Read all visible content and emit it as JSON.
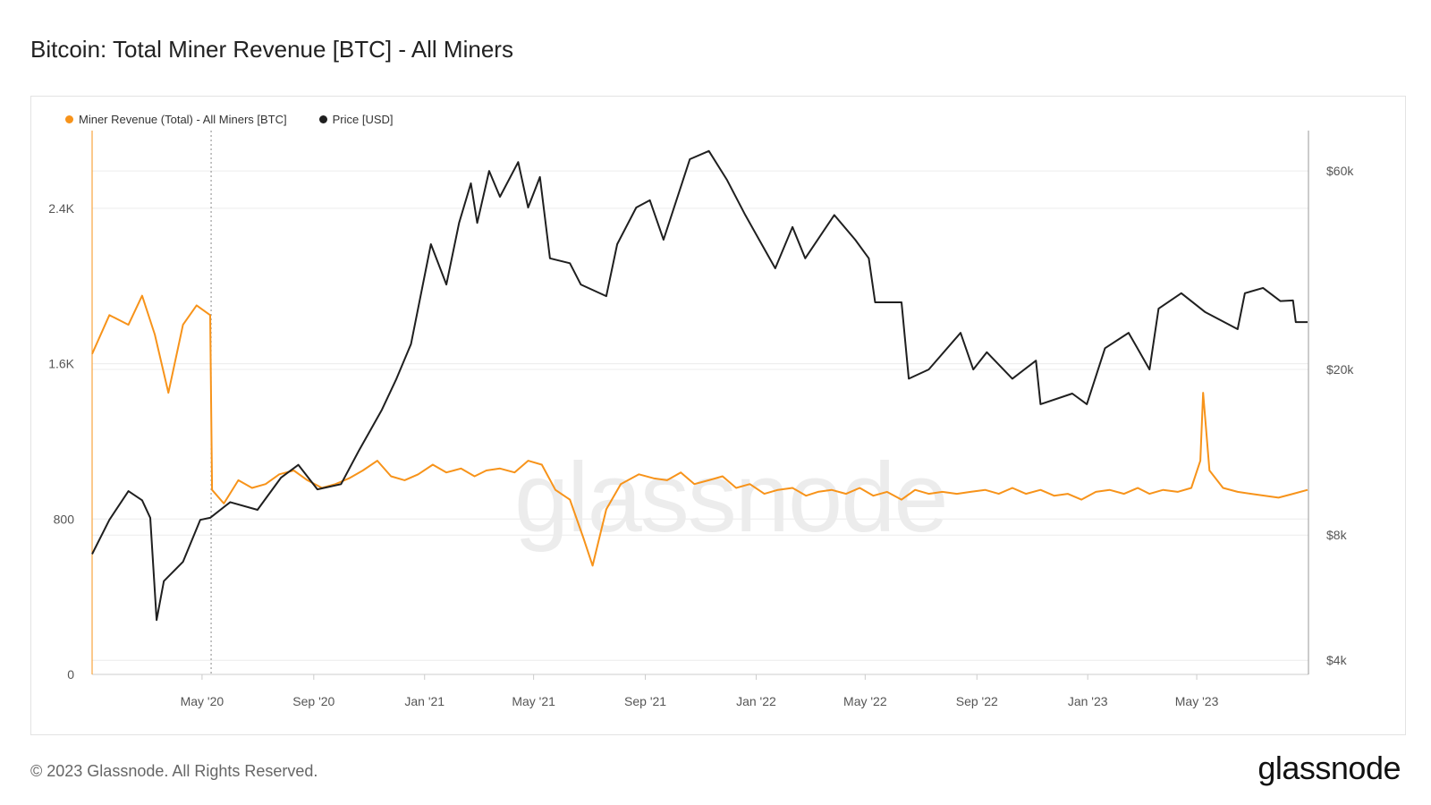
{
  "title": "Bitcoin: Total Miner Revenue [BTC] - All Miners",
  "footer": {
    "copyright": "© 2023 Glassnode. All Rights Reserved.",
    "logo": "glassnode"
  },
  "watermark": "glassnode",
  "colors": {
    "revenue": "#f7931a",
    "price": "#1f1f1f",
    "grid": "#ececec",
    "axis": "#cccccc"
  },
  "chart_data": {
    "type": "line",
    "title": "Bitcoin: Total Miner Revenue [BTC] - All Miners",
    "legend_position": "top-left",
    "grid": true,
    "x_ticks": [
      "May '20",
      "Sep '20",
      "Jan '21",
      "May '21",
      "Sep '21",
      "Jan '22",
      "May '22",
      "Sep '22",
      "Jan '23",
      "May '23"
    ],
    "x_tick_dates": [
      "2020-05-01",
      "2020-09-01",
      "2021-01-01",
      "2021-05-01",
      "2021-09-01",
      "2022-01-01",
      "2022-05-01",
      "2022-09-01",
      "2023-01-01",
      "2023-05-01"
    ],
    "x_range": [
      "2020-01-01",
      "2023-09-01"
    ],
    "y_left": {
      "label": "",
      "ticks": [
        "0",
        "800",
        "1.6K",
        "2.4K"
      ],
      "tick_values": [
        0,
        800,
        1600,
        2400
      ],
      "range": [
        0,
        2800
      ]
    },
    "y_right": {
      "label": "",
      "scale": "log",
      "ticks": [
        "$4k",
        "$8k",
        "$20k",
        "$60k"
      ],
      "tick_values": [
        4000,
        8000,
        20000,
        60000
      ],
      "range": [
        3700,
        75000
      ]
    },
    "halving_marker": "2020-05-11",
    "series": [
      {
        "name": "Miner Revenue (Total) - All Miners [BTC]",
        "axis": "left",
        "color": "#f7931a",
        "points": [
          [
            "2020-01-01",
            1650
          ],
          [
            "2020-01-20",
            1850
          ],
          [
            "2020-02-10",
            1800
          ],
          [
            "2020-02-25",
            1950
          ],
          [
            "2020-03-10",
            1750
          ],
          [
            "2020-03-25",
            1450
          ],
          [
            "2020-04-10",
            1800
          ],
          [
            "2020-04-25",
            1900
          ],
          [
            "2020-05-10",
            1850
          ],
          [
            "2020-05-12",
            950
          ],
          [
            "2020-05-25",
            880
          ],
          [
            "2020-06-10",
            1000
          ],
          [
            "2020-06-25",
            960
          ],
          [
            "2020-07-10",
            980
          ],
          [
            "2020-07-25",
            1030
          ],
          [
            "2020-08-10",
            1050
          ],
          [
            "2020-08-25",
            1000
          ],
          [
            "2020-09-10",
            960
          ],
          [
            "2020-09-25",
            980
          ],
          [
            "2020-10-10",
            1010
          ],
          [
            "2020-10-25",
            1050
          ],
          [
            "2020-11-10",
            1100
          ],
          [
            "2020-11-25",
            1020
          ],
          [
            "2020-12-10",
            1000
          ],
          [
            "2020-12-25",
            1030
          ],
          [
            "2021-01-10",
            1080
          ],
          [
            "2021-01-25",
            1040
          ],
          [
            "2021-02-10",
            1060
          ],
          [
            "2021-02-25",
            1020
          ],
          [
            "2021-03-10",
            1050
          ],
          [
            "2021-03-25",
            1060
          ],
          [
            "2021-04-10",
            1040
          ],
          [
            "2021-04-25",
            1100
          ],
          [
            "2021-05-10",
            1080
          ],
          [
            "2021-05-25",
            950
          ],
          [
            "2021-06-10",
            900
          ],
          [
            "2021-06-25",
            700
          ],
          [
            "2021-07-05",
            560
          ],
          [
            "2021-07-20",
            850
          ],
          [
            "2021-08-05",
            980
          ],
          [
            "2021-08-25",
            1030
          ],
          [
            "2021-09-10",
            1010
          ],
          [
            "2021-09-25",
            1000
          ],
          [
            "2021-10-10",
            1040
          ],
          [
            "2021-10-25",
            980
          ],
          [
            "2021-11-10",
            1000
          ],
          [
            "2021-11-25",
            1020
          ],
          [
            "2021-12-10",
            960
          ],
          [
            "2021-12-25",
            980
          ],
          [
            "2022-01-10",
            930
          ],
          [
            "2022-01-25",
            950
          ],
          [
            "2022-02-10",
            960
          ],
          [
            "2022-02-25",
            920
          ],
          [
            "2022-03-10",
            940
          ],
          [
            "2022-03-25",
            950
          ],
          [
            "2022-04-10",
            930
          ],
          [
            "2022-04-25",
            960
          ],
          [
            "2022-05-10",
            920
          ],
          [
            "2022-05-25",
            940
          ],
          [
            "2022-06-10",
            900
          ],
          [
            "2022-06-25",
            950
          ],
          [
            "2022-07-10",
            930
          ],
          [
            "2022-07-25",
            940
          ],
          [
            "2022-08-10",
            930
          ],
          [
            "2022-08-25",
            940
          ],
          [
            "2022-09-10",
            950
          ],
          [
            "2022-09-25",
            930
          ],
          [
            "2022-10-10",
            960
          ],
          [
            "2022-10-25",
            930
          ],
          [
            "2022-11-10",
            950
          ],
          [
            "2022-11-25",
            920
          ],
          [
            "2022-12-10",
            930
          ],
          [
            "2022-12-25",
            900
          ],
          [
            "2023-01-10",
            940
          ],
          [
            "2023-01-25",
            950
          ],
          [
            "2023-02-10",
            930
          ],
          [
            "2023-02-25",
            960
          ],
          [
            "2023-03-10",
            930
          ],
          [
            "2023-03-25",
            950
          ],
          [
            "2023-04-10",
            940
          ],
          [
            "2023-04-25",
            960
          ],
          [
            "2023-05-05",
            1100
          ],
          [
            "2023-05-08",
            1450
          ],
          [
            "2023-05-15",
            1050
          ],
          [
            "2023-05-30",
            960
          ],
          [
            "2023-06-15",
            940
          ],
          [
            "2023-06-30",
            930
          ],
          [
            "2023-07-15",
            920
          ],
          [
            "2023-07-30",
            910
          ],
          [
            "2023-08-15",
            930
          ],
          [
            "2023-08-31",
            950
          ]
        ]
      },
      {
        "name": "Price [USD]",
        "axis": "right",
        "color": "#1f1f1f",
        "points": [
          [
            "2020-01-01",
            7200
          ],
          [
            "2020-01-20",
            8700
          ],
          [
            "2020-02-10",
            10200
          ],
          [
            "2020-02-25",
            9700
          ],
          [
            "2020-03-05",
            8800
          ],
          [
            "2020-03-12",
            5000
          ],
          [
            "2020-03-20",
            6200
          ],
          [
            "2020-04-10",
            6900
          ],
          [
            "2020-04-29",
            8700
          ],
          [
            "2020-05-10",
            8800
          ],
          [
            "2020-06-01",
            9600
          ],
          [
            "2020-07-01",
            9200
          ],
          [
            "2020-07-27",
            11000
          ],
          [
            "2020-08-15",
            11800
          ],
          [
            "2020-09-05",
            10300
          ],
          [
            "2020-10-01",
            10600
          ],
          [
            "2020-10-21",
            12800
          ],
          [
            "2020-11-15",
            16000
          ],
          [
            "2020-12-01",
            19000
          ],
          [
            "2020-12-17",
            23000
          ],
          [
            "2021-01-08",
            40000
          ],
          [
            "2021-01-25",
            32000
          ],
          [
            "2021-02-08",
            45000
          ],
          [
            "2021-02-21",
            56000
          ],
          [
            "2021-02-28",
            45000
          ],
          [
            "2021-03-13",
            60000
          ],
          [
            "2021-03-25",
            52000
          ],
          [
            "2021-04-14",
            63000
          ],
          [
            "2021-04-25",
            49000
          ],
          [
            "2021-05-08",
            58000
          ],
          [
            "2021-05-19",
            37000
          ],
          [
            "2021-06-10",
            36000
          ],
          [
            "2021-06-22",
            32000
          ],
          [
            "2021-07-20",
            30000
          ],
          [
            "2021-08-01",
            40000
          ],
          [
            "2021-08-22",
            49000
          ],
          [
            "2021-09-06",
            51000
          ],
          [
            "2021-09-21",
            41000
          ],
          [
            "2021-10-20",
            64000
          ],
          [
            "2021-11-10",
            67000
          ],
          [
            "2021-11-30",
            57000
          ],
          [
            "2021-12-20",
            47000
          ],
          [
            "2022-01-22",
            35000
          ],
          [
            "2022-02-10",
            44000
          ],
          [
            "2022-02-24",
            37000
          ],
          [
            "2022-03-28",
            47000
          ],
          [
            "2022-04-20",
            41000
          ],
          [
            "2022-05-05",
            37000
          ],
          [
            "2022-05-12",
            29000
          ],
          [
            "2022-06-10",
            29000
          ],
          [
            "2022-06-18",
            19000
          ],
          [
            "2022-07-10",
            20000
          ],
          [
            "2022-08-14",
            24500
          ],
          [
            "2022-08-28",
            20000
          ],
          [
            "2022-09-12",
            22000
          ],
          [
            "2022-10-10",
            19000
          ],
          [
            "2022-11-05",
            21000
          ],
          [
            "2022-11-10",
            16500
          ],
          [
            "2022-12-15",
            17500
          ],
          [
            "2022-12-31",
            16500
          ],
          [
            "2023-01-20",
            22500
          ],
          [
            "2023-02-15",
            24500
          ],
          [
            "2023-03-10",
            20000
          ],
          [
            "2023-03-20",
            28000
          ],
          [
            "2023-04-14",
            30500
          ],
          [
            "2023-05-10",
            27500
          ],
          [
            "2023-06-15",
            25000
          ],
          [
            "2023-06-23",
            30500
          ],
          [
            "2023-07-13",
            31400
          ],
          [
            "2023-08-01",
            29200
          ],
          [
            "2023-08-15",
            29300
          ],
          [
            "2023-08-18",
            26000
          ],
          [
            "2023-08-31",
            26000
          ]
        ]
      }
    ]
  }
}
